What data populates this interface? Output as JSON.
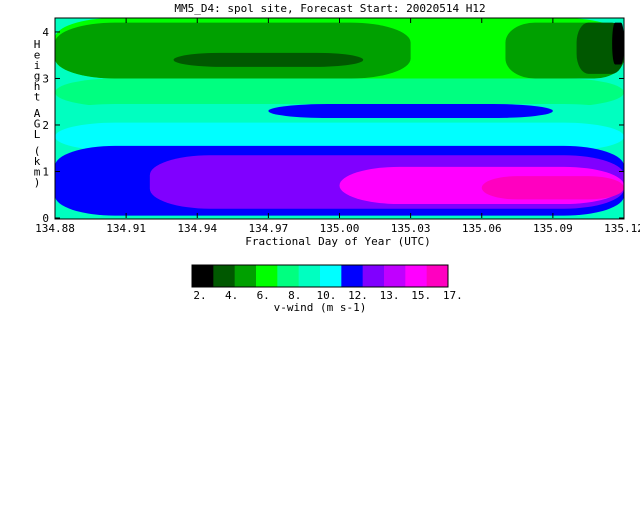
{
  "chart_data": {
    "type": "heatmap",
    "title": "MM5_D4: spol site,  Forecast Start: 20020514 H12",
    "xlabel": "Fractional Day of Year (UTC)",
    "ylabel": "Height AGL (km)",
    "xlim": [
      134.88,
      135.12
    ],
    "ylim": [
      0,
      4.3
    ],
    "x_ticks": [
      "134.88",
      "134.91",
      "134.94",
      "134.97",
      "135.00",
      "135.03",
      "135.06",
      "135.09",
      "135.12"
    ],
    "y_ticks": [
      "0",
      "1",
      "2",
      "3",
      "4"
    ],
    "colorbar": {
      "label": "v-wind (m s-1)",
      "tick_labels": [
        "2.",
        "4.",
        "6.",
        "8.",
        "10.",
        "12.",
        "13.",
        "15.",
        "17."
      ],
      "colors": [
        "#000000",
        "#005800",
        "#00a000",
        "#00ff00",
        "#00ff80",
        "#00ffc0",
        "#00ffff",
        "#0000ff",
        "#8000ff",
        "#c000ff",
        "#ff00ff",
        "#ff00c0"
      ]
    },
    "regions": [
      {
        "level": 11,
        "color": "#00ff00",
        "x": [
          134.88,
          135.12
        ],
        "y": [
          3.0,
          4.3
        ]
      },
      {
        "level": 10,
        "color": "#00a000",
        "x": [
          134.88,
          135.03
        ],
        "y": [
          3.0,
          4.2
        ]
      },
      {
        "level": 9,
        "color": "#005800",
        "x": [
          134.93,
          135.01
        ],
        "y": [
          3.25,
          3.55
        ]
      },
      {
        "level": 10,
        "color": "#00a000",
        "x": [
          135.07,
          135.12
        ],
        "y": [
          3.0,
          4.2
        ]
      },
      {
        "level": 9,
        "color": "#005800",
        "x": [
          135.1,
          135.12
        ],
        "y": [
          3.1,
          4.2
        ]
      },
      {
        "level": 8,
        "color": "#000000",
        "x": [
          135.115,
          135.12
        ],
        "y": [
          3.3,
          4.2
        ]
      },
      {
        "level": 7,
        "color": "#00ff80",
        "x": [
          134.88,
          135.12
        ],
        "y": [
          2.4,
          3.0
        ]
      },
      {
        "level": 6,
        "color": "#00ffc0",
        "x": [
          134.88,
          135.12
        ],
        "y": [
          1.95,
          2.45
        ]
      },
      {
        "level": 5,
        "color": "#00ffff",
        "x": [
          134.88,
          135.12
        ],
        "y": [
          1.45,
          2.05
        ]
      },
      {
        "level": 4,
        "color": "#0000ff",
        "x": [
          134.97,
          135.09
        ],
        "y": [
          2.15,
          2.45
        ]
      },
      {
        "level": 3,
        "color": "#0000ff",
        "x": [
          134.88,
          135.12
        ],
        "y": [
          0.05,
          1.55
        ]
      },
      {
        "level": 2,
        "color": "#8000ff",
        "x": [
          134.92,
          135.12
        ],
        "y": [
          0.2,
          1.35
        ]
      },
      {
        "level": 1,
        "color": "#ff00ff",
        "x": [
          135.0,
          135.12
        ],
        "y": [
          0.3,
          1.1
        ]
      },
      {
        "level": 0,
        "color": "#ff00c0",
        "x": [
          135.06,
          135.12
        ],
        "y": [
          0.4,
          0.9
        ]
      }
    ]
  }
}
